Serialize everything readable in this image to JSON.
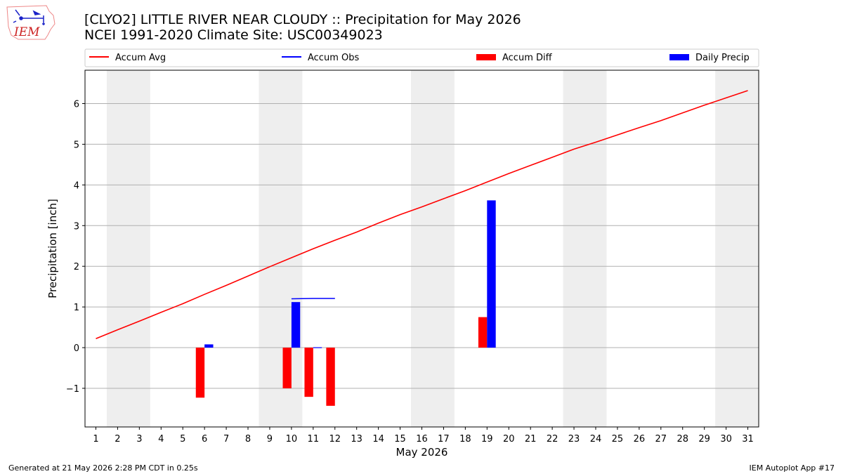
{
  "header": {
    "title_line1": "[CLYO2] LITTLE RIVER NEAR CLOUDY :: Precipitation for May 2026",
    "title_line2": "NCEI 1991-2020 Climate Site: USC00349023",
    "logo_text": "IEM"
  },
  "footer": {
    "left": "Generated at 21 May 2026 2:28 PM CDT in 0.25s",
    "right": "IEM Autoplot App #17"
  },
  "colors": {
    "accum_avg": "#ff0000",
    "accum_obs": "#0000ff",
    "accum_diff": "#ff0000",
    "daily_precip": "#0000ff",
    "weekend_shade": "#eeeeee",
    "grid": "#b0b0b0"
  },
  "chart_data": {
    "type": "bar",
    "xlabel": "May 2026",
    "ylabel": "Precipitation [inch]",
    "xlim": [
      0.5,
      31.5
    ],
    "ylim": [
      -1.95,
      6.82
    ],
    "yticks": [
      -1,
      0,
      1,
      2,
      3,
      4,
      5,
      6
    ],
    "ytick_labels": [
      "−1",
      "0",
      "1",
      "2",
      "3",
      "4",
      "5",
      "6"
    ],
    "grid": "horizontal",
    "legend_placement": "top, above plot",
    "x": [
      1,
      2,
      3,
      4,
      5,
      6,
      7,
      8,
      9,
      10,
      11,
      12,
      13,
      14,
      15,
      16,
      17,
      18,
      19,
      20,
      21,
      22,
      23,
      24,
      25,
      26,
      27,
      28,
      29,
      30,
      31
    ],
    "weekend_spans": [
      [
        2,
        3
      ],
      [
        9,
        10
      ],
      [
        16,
        17
      ],
      [
        23,
        24
      ],
      [
        30,
        31
      ]
    ],
    "series": [
      {
        "name": "Accum Avg",
        "type": "line",
        "x": [
          1,
          2,
          3,
          4,
          5,
          6,
          7,
          8,
          9,
          10,
          11,
          12,
          13,
          14,
          15,
          16,
          17,
          18,
          19,
          20,
          21,
          22,
          23,
          24,
          25,
          26,
          27,
          28,
          29,
          30,
          31
        ],
        "values": [
          0.22,
          0.44,
          0.65,
          0.87,
          1.08,
          1.31,
          1.53,
          1.76,
          1.99,
          2.21,
          2.43,
          2.64,
          2.84,
          3.06,
          3.27,
          3.46,
          3.66,
          3.86,
          4.07,
          4.28,
          4.48,
          4.68,
          4.88,
          5.05,
          5.23,
          5.41,
          5.58,
          5.77,
          5.96,
          6.14,
          6.32
        ]
      },
      {
        "name": "Accum Obs",
        "type": "line",
        "x": [
          10,
          11,
          12
        ],
        "values": [
          1.2,
          1.21,
          1.21
        ]
      },
      {
        "name": "Accum Diff",
        "type": "bar",
        "x": [
          6,
          10,
          11,
          12,
          19
        ],
        "values": [
          -1.23,
          -1.0,
          -1.21,
          -1.43,
          0.75
        ]
      },
      {
        "name": "Daily Precip",
        "type": "bar",
        "x": [
          6,
          10,
          11,
          19
        ],
        "values": [
          0.08,
          1.12,
          0.01,
          3.62
        ]
      }
    ]
  }
}
